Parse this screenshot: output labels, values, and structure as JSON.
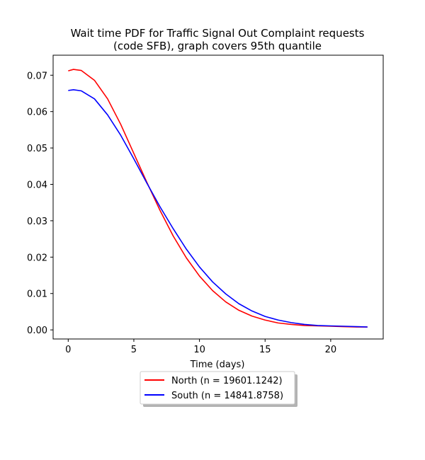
{
  "chart_data": {
    "type": "line",
    "title": {
      "line1": "Wait time PDF for Traffic Signal Out Complaint  requests",
      "line2": "(code SFB), graph covers 95th quantile"
    },
    "xlabel": "Time (days)",
    "ylabel": "",
    "xlim": [
      -1.15,
      24.0
    ],
    "ylim": [
      -0.0025,
      0.0755
    ],
    "xticks": [
      0,
      5,
      10,
      15,
      20
    ],
    "yticks": [
      0.0,
      0.01,
      0.02,
      0.03,
      0.04,
      0.05,
      0.06,
      0.07
    ],
    "ytick_labels": [
      "0.00",
      "0.01",
      "0.02",
      "0.03",
      "0.04",
      "0.05",
      "0.06",
      "0.07"
    ],
    "grid": false,
    "legend_position": "below plot, centered",
    "series": [
      {
        "name": "North (n = 19601.1242)",
        "color": "#ff0000",
        "x": [
          0,
          0.4,
          1,
          2,
          3,
          4,
          5,
          6,
          7,
          8,
          9,
          10,
          11,
          12,
          13,
          14,
          15,
          16,
          17,
          18,
          19,
          20,
          21,
          22,
          22.8
        ],
        "y": [
          0.0712,
          0.0716,
          0.0713,
          0.0686,
          0.0635,
          0.0565,
          0.0485,
          0.0405,
          0.0328,
          0.0258,
          0.0198,
          0.0148,
          0.0108,
          0.0077,
          0.0054,
          0.0038,
          0.0027,
          0.0019,
          0.0015,
          0.0012,
          0.0011,
          0.001,
          0.0009,
          0.0008,
          0.0008
        ]
      },
      {
        "name": "South (n = 14841.8758)",
        "color": "#0000ff",
        "x": [
          0,
          0.4,
          1,
          2,
          3,
          4,
          5,
          6,
          7,
          8,
          9,
          10,
          11,
          12,
          13,
          14,
          15,
          16,
          17,
          18,
          19,
          20,
          21,
          22,
          22.8
        ],
        "y": [
          0.0658,
          0.066,
          0.0657,
          0.0635,
          0.0591,
          0.0535,
          0.047,
          0.0403,
          0.0338,
          0.0278,
          0.0222,
          0.0173,
          0.0132,
          0.0099,
          0.0072,
          0.0052,
          0.0037,
          0.0027,
          0.002,
          0.0015,
          0.0012,
          0.0011,
          0.001,
          0.0009,
          0.0008
        ]
      }
    ]
  }
}
